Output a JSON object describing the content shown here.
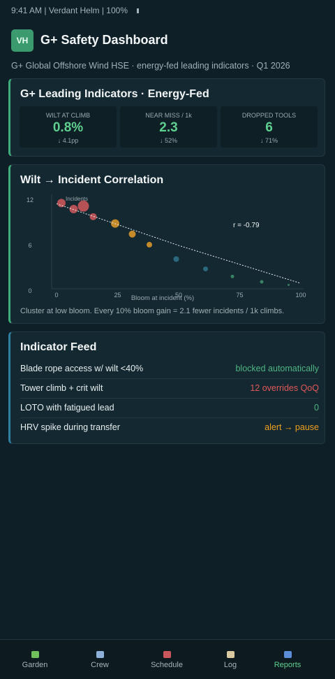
{
  "status_bar": {
    "text": "9:41 AM | Verdant Helm | 100%"
  },
  "header": {
    "avatar": "VH",
    "title": "G+ Safety Dashboard",
    "subtitle": "G+ Global Offshore Wind HSE · energy-fed leading indicators · Q1 2026"
  },
  "indicators": {
    "title": "G+ Leading Indicators · Energy-Fed",
    "kpis": [
      {
        "label": "WILT AT CLIMB",
        "value": "0.8%",
        "delta": "↓ 4.1pp"
      },
      {
        "label": "NEAR MISS / 1k",
        "value": "2.3",
        "delta": "↓ 52%"
      },
      {
        "label": "DROPPED TOOLS",
        "value": "6",
        "delta": "↓ 71%"
      }
    ]
  },
  "correlation": {
    "title": "Wilt → Incident Correlation",
    "caption": "Cluster at low bloom. Every 10% bloom gain = 2.1 fewer incidents / 1k climbs."
  },
  "chart_data": {
    "type": "scatter",
    "x_label": "Bloom at incident (%)",
    "y_label": "Incidents",
    "annotation": "r = -0.79",
    "x": [
      2,
      7,
      11,
      15,
      24,
      31,
      38,
      49,
      61,
      72,
      84,
      95
    ],
    "values": [
      11.6,
      10.8,
      11.2,
      9.8,
      8.9,
      7.5,
      6.1,
      4.2,
      2.9,
      1.9,
      1.2,
      0.8
    ],
    "sizes": [
      6,
      6,
      8,
      5,
      6,
      5,
      4,
      4,
      3.5,
      2.5,
      2.5,
      1.5
    ],
    "colors": [
      "#c9575b",
      "#c9575b",
      "#c9575b",
      "#c9575b",
      "#d9952a",
      "#d9952a",
      "#d9952a",
      "#2f6f86",
      "#2f6f86",
      "#3f8a68",
      "#3f8a68",
      "#3f8a68"
    ],
    "trendline": {
      "x": [
        0,
        50,
        100
      ],
      "y": [
        11.5,
        6,
        1
      ]
    },
    "xlim": [
      0,
      100
    ],
    "ylim": [
      0,
      12
    ],
    "xticks": [
      0,
      25,
      50,
      75,
      100
    ],
    "yticks": [
      0,
      6,
      12
    ]
  },
  "feed": {
    "title": "Indicator Feed",
    "rows": [
      {
        "label": "Blade rope access w/ wilt <40%",
        "status": "blocked automatically",
        "color": "#4fb482"
      },
      {
        "label": "Tower climb + crit wilt",
        "status": "12 overrides QoQ",
        "color": "#e0585a"
      },
      {
        "label": "LOTO with fatigued lead",
        "status": "0",
        "color": "#4fb482"
      },
      {
        "label": "HRV spike during transfer",
        "status": "alert → pause",
        "color": "#f0a020"
      }
    ]
  },
  "nav": {
    "items": [
      "Garden",
      "Crew",
      "Schedule",
      "Log",
      "Reports"
    ],
    "active": 4
  }
}
